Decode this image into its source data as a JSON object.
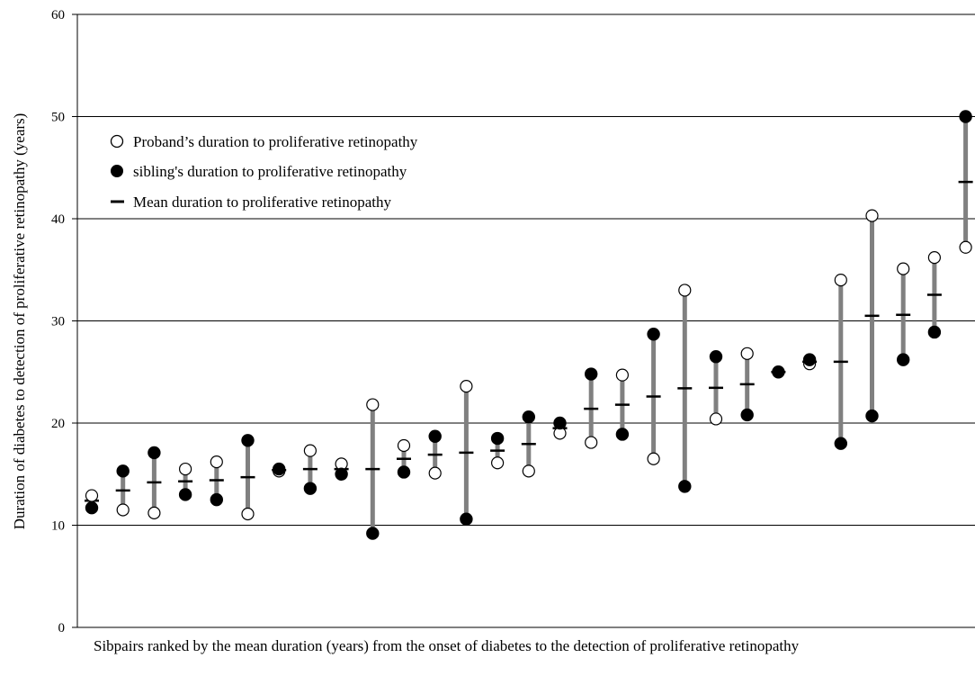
{
  "chart_data": {
    "type": "dumbbell",
    "xlabel": "Sibpairs ranked by the mean duration (years) from the onset of diabetes to the detection of proliferative retinopathy",
    "ylabel": "Duration of diabetes to detection of proliferative retinopathy (years)",
    "ylim": [
      0,
      60
    ],
    "yticks": [
      "0",
      "10",
      "20",
      "30",
      "40",
      "50",
      "60"
    ],
    "grid": true,
    "legend_position": "top-left",
    "series": [
      {
        "name": "Proband’s duration to proliferative retinopathy",
        "marker": "open-circle",
        "values": [
          12.9,
          11.5,
          11.2,
          15.5,
          16.2,
          11.1,
          15.3,
          17.3,
          16.0,
          21.8,
          17.8,
          15.1,
          23.6,
          16.1,
          15.3,
          19.0,
          18.1,
          24.7,
          16.5,
          33.0,
          20.4,
          26.8,
          25.0,
          25.8,
          34.0,
          40.3,
          35.1,
          36.2,
          37.2
        ]
      },
      {
        "name": "sibling's duration to proliferative retinopathy",
        "marker": "filled-circle",
        "values": [
          11.7,
          15.3,
          17.1,
          13.0,
          12.5,
          18.3,
          15.5,
          13.6,
          15.0,
          9.2,
          15.2,
          18.7,
          10.6,
          18.5,
          20.6,
          20.0,
          24.8,
          18.9,
          28.7,
          13.8,
          26.5,
          20.8,
          25.0,
          26.2,
          18.0,
          20.7,
          26.2,
          28.9,
          50.0
        ]
      },
      {
        "name": "Mean duration to proliferative retinopathy",
        "marker": "dash",
        "values": [
          12.4,
          13.4,
          14.2,
          14.3,
          14.4,
          14.7,
          15.4,
          15.5,
          15.5,
          15.5,
          16.5,
          16.9,
          17.1,
          17.3,
          17.95,
          19.5,
          21.4,
          21.8,
          22.6,
          23.4,
          23.45,
          23.8,
          25.0,
          26.0,
          26.0,
          30.5,
          30.6,
          32.55,
          43.6
        ]
      }
    ],
    "colors": {
      "range_bar": "#808080",
      "marker_fill_sibling": "#000000",
      "marker_fill_proband": "#ffffff",
      "grid": "#000000"
    }
  }
}
